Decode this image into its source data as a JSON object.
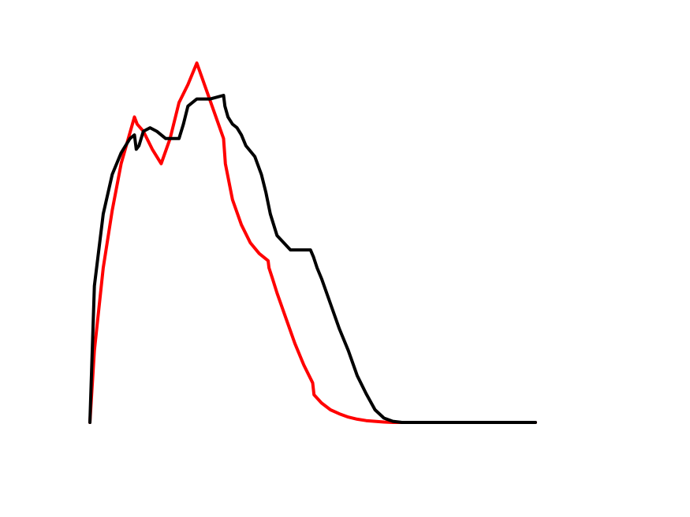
{
  "chart_data": {
    "type": "line",
    "title": "",
    "xlabel": "",
    "ylabel": "",
    "xlim": [
      0,
      100
    ],
    "ylim": [
      0,
      100
    ],
    "grid": false,
    "axes_visible": false,
    "legend": "none",
    "series": [
      {
        "color": "#ff0000",
        "stroke_width": 4,
        "x": [
          0,
          1,
          3,
          5,
          7,
          10,
          10.6,
          12,
          14,
          16,
          18,
          20,
          22,
          24,
          26,
          28,
          30,
          30.4,
          32,
          34,
          36,
          38,
          40,
          40.2,
          41,
          42,
          44,
          46,
          48,
          50,
          50.3,
          52,
          54,
          56,
          58,
          60,
          62,
          64,
          66,
          68,
          70,
          72,
          76,
          80,
          85,
          90,
          95,
          100
        ],
        "y": [
          0,
          20,
          43,
          59,
          72,
          85,
          83,
          81,
          76,
          72,
          79,
          89,
          94,
          100,
          93,
          86,
          79,
          72,
          62,
          55,
          50,
          47,
          45,
          43,
          40,
          36,
          29,
          22,
          16,
          11,
          7.7,
          5.4,
          3.5,
          2.4,
          1.5,
          0.9,
          0.5,
          0.3,
          0.1,
          0,
          0,
          0,
          0,
          0,
          0,
          0,
          0,
          0
        ]
      },
      {
        "color": "#000000",
        "stroke_width": 4,
        "x": [
          0,
          1,
          3,
          5,
          7,
          9,
          10,
          10.4,
          11,
          12,
          13.5,
          15,
          17,
          20,
          21,
          22,
          24,
          25,
          27,
          30,
          30.3,
          31,
          32,
          33,
          34,
          35,
          37,
          38.5,
          39.5,
          40.5,
          42,
          45,
          49.5,
          50.2,
          51,
          52,
          54,
          56,
          58,
          60,
          62,
          64,
          66,
          68,
          70,
          72,
          76,
          80,
          85,
          90,
          95,
          100
        ],
        "y": [
          0,
          38,
          58,
          69,
          75,
          79,
          80,
          76,
          77,
          81,
          82,
          81,
          79,
          79,
          83,
          88,
          90,
          90,
          90,
          91,
          88,
          85,
          83,
          82,
          80,
          77,
          74,
          69,
          64,
          58,
          52,
          48,
          48,
          46,
          43,
          40,
          33,
          26,
          20,
          13,
          8,
          3.5,
          1.2,
          0.3,
          0,
          0,
          0,
          0,
          0,
          0,
          0,
          0
        ]
      }
    ]
  }
}
